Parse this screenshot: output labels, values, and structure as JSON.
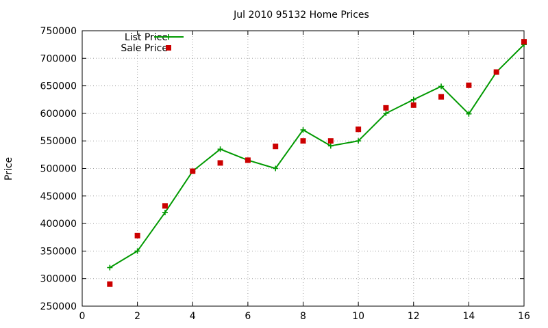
{
  "chart_data": {
    "type": "line",
    "title": "Jul 2010 95132 Home Prices",
    "xlabel": "",
    "ylabel": "Price",
    "xlim": [
      0,
      16
    ],
    "ylim": [
      250000,
      750000
    ],
    "x_ticks": [
      "0",
      "2",
      "4",
      "6",
      "8",
      "10",
      "12",
      "14",
      "16"
    ],
    "y_ticks": [
      "250000",
      "300000",
      "350000",
      "400000",
      "450000",
      "500000",
      "550000",
      "600000",
      "650000",
      "700000",
      "750000"
    ],
    "grid": true,
    "legend_position": "top-left",
    "series": [
      {
        "name": "List Price",
        "style": "lines+points",
        "marker": "plus",
        "color": "#009900",
        "x": [
          1,
          2,
          3,
          4,
          5,
          6,
          7,
          8,
          9,
          10,
          11,
          12,
          13,
          14,
          15,
          16
        ],
        "y": [
          320000,
          350000,
          420000,
          495000,
          535000,
          515000,
          500000,
          570000,
          541000,
          550000,
          600000,
          625000,
          649000,
          599000,
          675000,
          725000
        ]
      },
      {
        "name": "Sale Price",
        "style": "points",
        "marker": "square",
        "color": "#cc0000",
        "x": [
          1,
          2,
          3,
          4,
          5,
          6,
          7,
          8,
          9,
          10,
          11,
          12,
          13,
          14,
          15,
          16
        ],
        "y": [
          290000,
          378000,
          432000,
          495000,
          510000,
          515000,
          540000,
          550000,
          550000,
          571000,
          610000,
          615000,
          630000,
          651000,
          675000,
          730000
        ]
      }
    ]
  }
}
